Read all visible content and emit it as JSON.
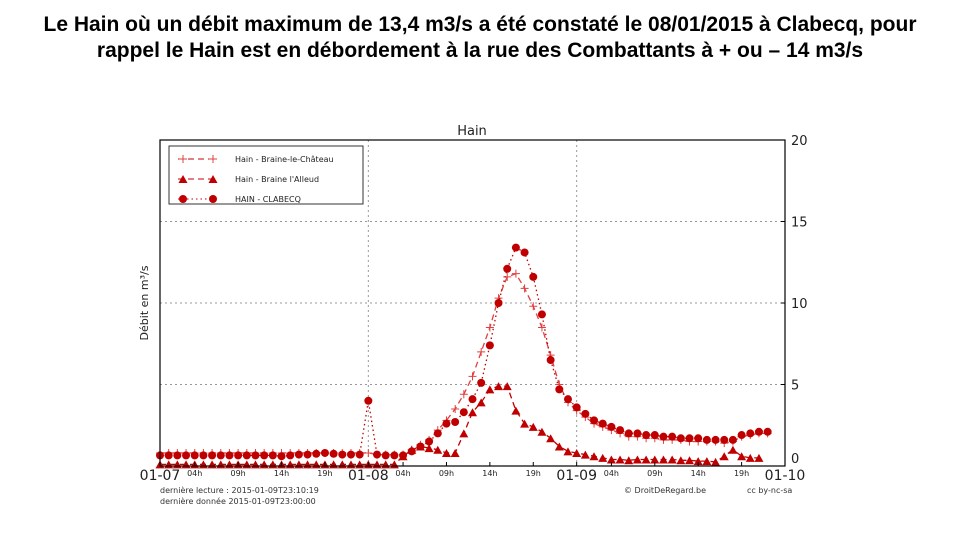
{
  "title": "Le Hain où un débit maximum de 13,4 m3/s a été constaté le 08/01/2015 à Clabecq, pour rappel le Hain est en débordement à la rue des Combattants à + ou – 14 m3/s",
  "footer": {
    "last_read": "dernière lecture : 2015-01-09T23:10:19",
    "last_data": "dernière donnée  2015-01-09T23:00:00",
    "copyright": "© DroitDeRegard.be",
    "license": "cc by-nc-sa"
  },
  "chart_data": {
    "type": "line",
    "title": "Hain",
    "ylabel": "Débit en m³/s",
    "ylim": [
      0,
      20
    ],
    "yticks": [
      "0",
      "5",
      "10",
      "15",
      "20"
    ],
    "xticks": [
      {
        "h": 0,
        "label": "01-07",
        "major": true
      },
      {
        "h": 4,
        "label": "04h"
      },
      {
        "h": 9,
        "label": "09h"
      },
      {
        "h": 14,
        "label": "14h"
      },
      {
        "h": 19,
        "label": "19h"
      },
      {
        "h": 24,
        "label": "01-08",
        "major": true
      },
      {
        "h": 28,
        "label": "04h"
      },
      {
        "h": 33,
        "label": "09h"
      },
      {
        "h": 38,
        "label": "14h"
      },
      {
        "h": 43,
        "label": "19h"
      },
      {
        "h": 48,
        "label": "01-09",
        "major": true
      },
      {
        "h": 52,
        "label": "04h"
      },
      {
        "h": 57,
        "label": "09h"
      },
      {
        "h": 62,
        "label": "14h"
      },
      {
        "h": 67,
        "label": "19h"
      },
      {
        "h": 72,
        "label": "01-10",
        "major": true
      }
    ],
    "grid": true,
    "legend": "top-left",
    "color": "#c00000",
    "x_unit": "hours from 2015-01-07 00h",
    "series": [
      {
        "name": "Hain - Braine-le-Château",
        "marker": "plus",
        "values": [
          0.8,
          0.8,
          0.8,
          0.8,
          0.8,
          0.8,
          0.8,
          0.8,
          0.8,
          0.8,
          0.8,
          0.8,
          0.8,
          0.8,
          0.8,
          0.8,
          0.8,
          0.8,
          0.8,
          0.8,
          0.8,
          0.8,
          0.8,
          0.8,
          0.8,
          0.7,
          0.7,
          0.7,
          0.7,
          1.0,
          1.3,
          1.6,
          2.2,
          2.8,
          3.5,
          4.4,
          5.5,
          7.0,
          8.5,
          10.3,
          11.6,
          11.8,
          10.9,
          9.8,
          8.5,
          6.8,
          5.0,
          3.9,
          3.4,
          3.0,
          2.6,
          2.4,
          2.2,
          2.0,
          1.8,
          1.8,
          1.7,
          1.7,
          1.6,
          1.6,
          1.6,
          1.5,
          1.5,
          1.5,
          1.5,
          1.4,
          1.5,
          1.8,
          1.9,
          2.0,
          2.0
        ]
      },
      {
        "name": "Hain - Braine l'Alleud",
        "marker": "triangle",
        "values": [
          0.1,
          0.1,
          0.1,
          0.1,
          0.1,
          0.1,
          0.1,
          0.1,
          0.1,
          0.1,
          0.1,
          0.1,
          0.1,
          0.1,
          0.1,
          0.1,
          0.1,
          0.1,
          0.1,
          0.1,
          0.1,
          0.1,
          0.1,
          0.1,
          0.1,
          0.1,
          0.1,
          0.1,
          0.6,
          1.0,
          1.2,
          1.1,
          1.0,
          0.8,
          0.8,
          2.0,
          3.3,
          3.9,
          4.7,
          4.9,
          4.9,
          3.4,
          2.6,
          2.4,
          2.1,
          1.7,
          1.2,
          0.9,
          0.8,
          0.7,
          0.6,
          0.5,
          0.4,
          0.4,
          0.35,
          0.4,
          0.4,
          0.4,
          0.4,
          0.4,
          0.35,
          0.35,
          0.3,
          0.3,
          0.25,
          0.6,
          1.0,
          0.6,
          0.5,
          0.5
        ]
      },
      {
        "name": "HAIN - CLABECQ",
        "marker": "circle",
        "values": [
          0.65,
          0.65,
          0.65,
          0.65,
          0.65,
          0.65,
          0.65,
          0.65,
          0.65,
          0.65,
          0.65,
          0.65,
          0.65,
          0.65,
          0.6,
          0.65,
          0.7,
          0.7,
          0.75,
          0.8,
          0.75,
          0.7,
          0.7,
          0.7,
          4.0,
          0.7,
          0.65,
          0.65,
          0.65,
          0.9,
          1.2,
          1.5,
          2.0,
          2.6,
          2.7,
          3.3,
          4.1,
          5.1,
          7.4,
          10.0,
          12.1,
          13.4,
          13.1,
          11.6,
          9.3,
          6.5,
          4.7,
          4.1,
          3.6,
          3.2,
          2.8,
          2.6,
          2.4,
          2.2,
          2.0,
          2.0,
          1.9,
          1.9,
          1.8,
          1.8,
          1.7,
          1.7,
          1.7,
          1.6,
          1.6,
          1.6,
          1.6,
          1.9,
          2.0,
          2.1,
          2.1
        ]
      }
    ]
  }
}
